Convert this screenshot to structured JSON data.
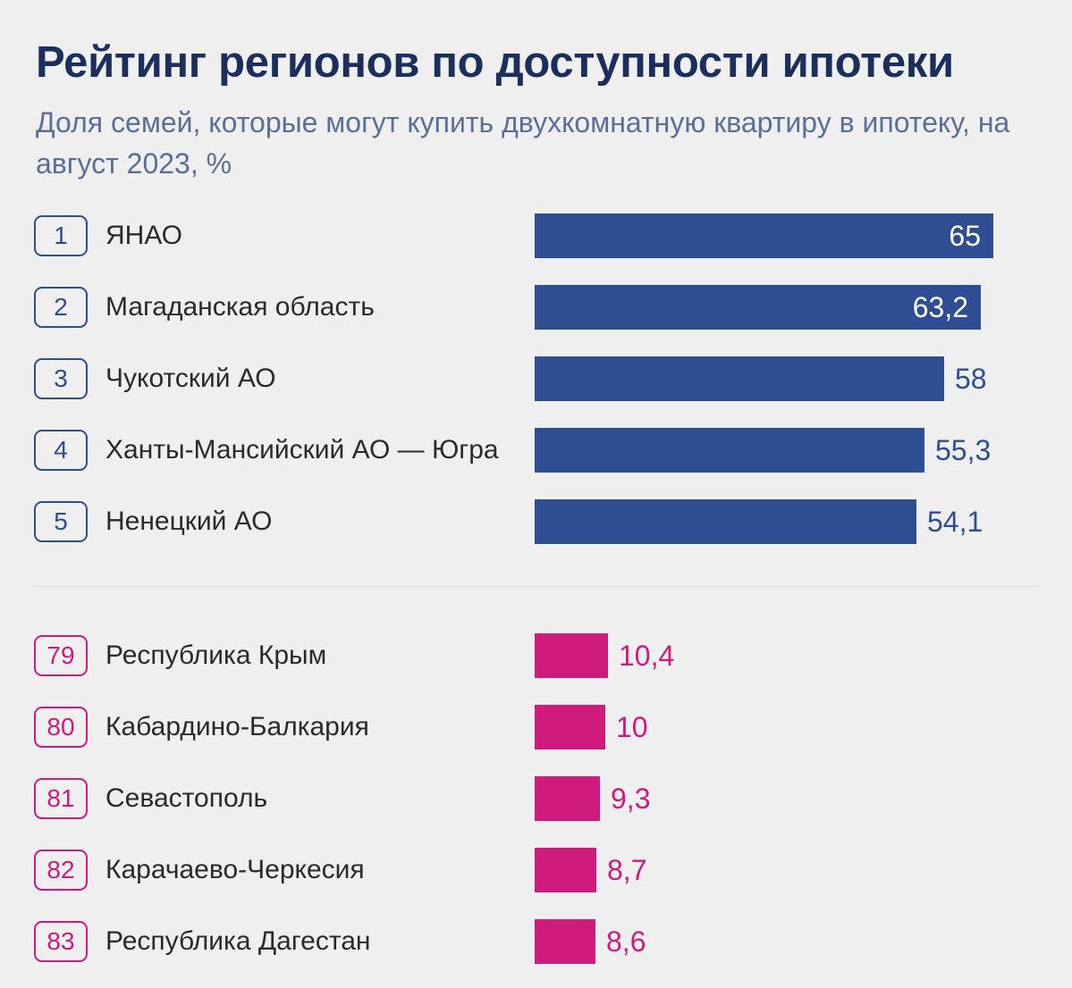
{
  "colors": {
    "title": "#1b2e5c",
    "subtitle": "#5a6f97",
    "top_bar": "#2f4d93",
    "bottom_bar": "#cf1b7c",
    "background": "#efefef"
  },
  "chart_data": {
    "type": "bar",
    "orientation": "horizontal",
    "title": "Рейтинг регионов по доступности ипотеки",
    "subtitle": "Доля семей, которые могут купить двухкомнатную квартиру в ипотеку, на август 2023, %",
    "xlim": [
      0,
      65
    ],
    "grid": false,
    "legend": "none",
    "groups": [
      {
        "name": "top",
        "color": "#2f4d93",
        "items": [
          {
            "rank": "1",
            "region": "ЯНАО",
            "value": 65,
            "label": "65"
          },
          {
            "rank": "2",
            "region": "Магаданская область",
            "value": 63.2,
            "label": "63,2"
          },
          {
            "rank": "3",
            "region": "Чукотский АО",
            "value": 58,
            "label": "58"
          },
          {
            "rank": "4",
            "region": "Ханты-Мансийский АО — Югра",
            "value": 55.3,
            "label": "55,3"
          },
          {
            "rank": "5",
            "region": "Ненецкий АО",
            "value": 54.1,
            "label": "54,1"
          }
        ]
      },
      {
        "name": "bottom",
        "color": "#cf1b7c",
        "items": [
          {
            "rank": "79",
            "region": "Республика Крым",
            "value": 10.4,
            "label": "10,4"
          },
          {
            "rank": "80",
            "region": "Кабардино-Балкария",
            "value": 10,
            "label": "10"
          },
          {
            "rank": "81",
            "region": "Севастополь",
            "value": 9.3,
            "label": "9,3"
          },
          {
            "rank": "82",
            "region": "Карачаево-Черкесия",
            "value": 8.7,
            "label": "8,7"
          },
          {
            "rank": "83",
            "region": "Республика Дагестан",
            "value": 8.6,
            "label": "8,6"
          }
        ]
      }
    ]
  }
}
